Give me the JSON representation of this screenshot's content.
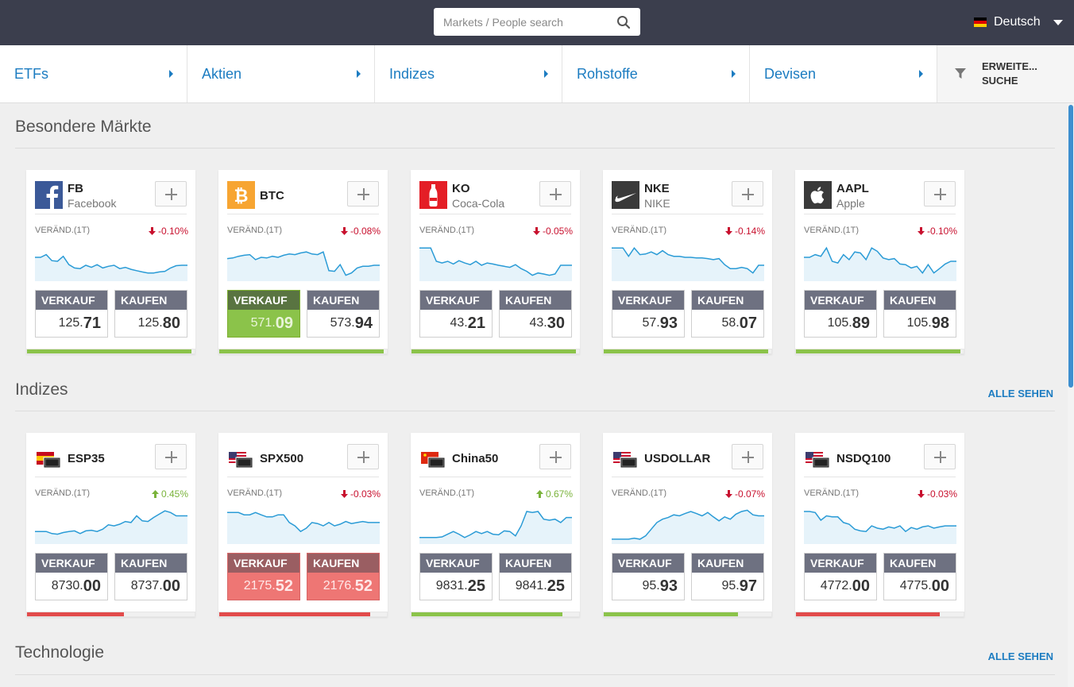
{
  "header": {
    "search_placeholder": "Markets / People search",
    "language": "Deutsch"
  },
  "nav": {
    "items": [
      {
        "label": "ETFs"
      },
      {
        "label": "Aktien"
      },
      {
        "label": "Indizes"
      },
      {
        "label": "Rohstoffe"
      },
      {
        "label": "Devisen"
      }
    ],
    "advanced_search": "ERWEITE... SUCHE"
  },
  "sections": [
    {
      "title": "Besondere Märkte",
      "see_all": "",
      "cards": [
        {
          "symbol": "FB",
          "name": "Facebook",
          "logo": "facebook-logo",
          "change_label": "VERÄND.(1T)",
          "change": "-0.10%",
          "direction": "down",
          "sell_label": "VERKAUF",
          "sell_int": "125.",
          "sell_dec": "71",
          "buy_label": "KAUFEN",
          "buy_int": "125.",
          "buy_dec": "80",
          "sentiment": 0.98,
          "sentiment_color": "green",
          "active": "none",
          "spark": [
            0.38,
            0.38,
            0.3,
            0.48,
            0.5,
            0.35,
            0.6,
            0.7,
            0.72,
            0.62,
            0.68,
            0.6,
            0.7,
            0.65,
            0.62,
            0.72,
            0.68,
            0.74,
            0.78,
            0.82,
            0.85,
            0.85,
            0.82,
            0.8,
            0.7,
            0.63,
            0.62,
            0.62
          ]
        },
        {
          "symbol": "BTC",
          "name": "",
          "logo": "bitcoin-logo",
          "change_label": "VERÄND.(1T)",
          "change": "-0.08%",
          "direction": "down",
          "sell_label": "VERKAUF",
          "sell_int": "571.",
          "sell_dec": "09",
          "buy_label": "KAUFEN",
          "buy_int": "573.",
          "buy_dec": "94",
          "sentiment": 0.98,
          "sentiment_color": "green",
          "active": "sell-green",
          "spark": [
            0.42,
            0.4,
            0.35,
            0.32,
            0.3,
            0.45,
            0.38,
            0.4,
            0.35,
            0.38,
            0.32,
            0.28,
            0.3,
            0.25,
            0.22,
            0.28,
            0.3,
            0.22,
            0.78,
            0.8,
            0.6,
            0.92,
            0.85,
            0.7,
            0.65,
            0.65,
            0.62,
            0.62
          ]
        },
        {
          "symbol": "KO",
          "name": "Coca-Cola",
          "logo": "coca-cola-logo",
          "change_label": "VERÄND.(1T)",
          "change": "-0.05%",
          "direction": "down",
          "sell_label": "VERKAUF",
          "sell_int": "43.",
          "sell_dec": "21",
          "buy_label": "KAUFEN",
          "buy_int": "43.",
          "buy_dec": "30",
          "sentiment": 0.98,
          "sentiment_color": "green",
          "active": "none",
          "spark": [
            0.1,
            0.1,
            0.1,
            0.5,
            0.55,
            0.5,
            0.58,
            0.48,
            0.55,
            0.6,
            0.5,
            0.62,
            0.55,
            0.58,
            0.62,
            0.65,
            0.68,
            0.6,
            0.72,
            0.8,
            0.92,
            0.85,
            0.88,
            0.92,
            0.88,
            0.62,
            0.62,
            0.62
          ]
        },
        {
          "symbol": "NKE",
          "name": "NIKE",
          "logo": "nike-logo",
          "change_label": "VERÄND.(1T)",
          "change": "-0.14%",
          "direction": "down",
          "sell_label": "VERKAUF",
          "sell_int": "57.",
          "sell_dec": "93",
          "buy_label": "KAUFEN",
          "buy_int": "58.",
          "buy_dec": "07",
          "sentiment": 0.98,
          "sentiment_color": "green",
          "active": "none",
          "spark": [
            0.1,
            0.1,
            0.1,
            0.35,
            0.1,
            0.3,
            0.28,
            0.22,
            0.3,
            0.18,
            0.3,
            0.35,
            0.35,
            0.38,
            0.38,
            0.4,
            0.4,
            0.42,
            0.45,
            0.42,
            0.6,
            0.72,
            0.72,
            0.68,
            0.72,
            0.85,
            0.62,
            0.62
          ]
        },
        {
          "symbol": "AAPL",
          "name": "Apple",
          "logo": "apple-logo",
          "change_label": "VERÄND.(1T)",
          "change": "-0.10%",
          "direction": "down",
          "sell_label": "VERKAUF",
          "sell_int": "105.",
          "sell_dec": "89",
          "buy_label": "KAUFEN",
          "buy_int": "105.",
          "buy_dec": "98",
          "sentiment": 0.98,
          "sentiment_color": "green",
          "active": "none",
          "spark": [
            0.38,
            0.38,
            0.3,
            0.35,
            0.1,
            0.5,
            0.55,
            0.3,
            0.45,
            0.22,
            0.25,
            0.45,
            0.1,
            0.2,
            0.4,
            0.45,
            0.42,
            0.58,
            0.6,
            0.7,
            0.65,
            0.85,
            0.6,
            0.85,
            0.72,
            0.58,
            0.5,
            0.5
          ]
        }
      ]
    },
    {
      "title": "Indizes",
      "see_all": "ALLE SEHEN",
      "cards": [
        {
          "symbol": "ESP35",
          "name": "",
          "logo": "spain-flag-icon",
          "change_label": "VERÄND.(1T)",
          "change": "0.45%",
          "direction": "up",
          "sell_label": "VERKAUF",
          "sell_int": "8730.",
          "sell_dec": "00",
          "buy_label": "KAUFEN",
          "buy_int": "8737.",
          "buy_dec": "00",
          "sentiment": 0.58,
          "sentiment_color": "red",
          "active": "none",
          "spark": [
            0.72,
            0.72,
            0.72,
            0.78,
            0.8,
            0.75,
            0.72,
            0.7,
            0.78,
            0.7,
            0.68,
            0.72,
            0.65,
            0.52,
            0.55,
            0.5,
            0.42,
            0.45,
            0.25,
            0.4,
            0.42,
            0.3,
            0.2,
            0.1,
            0.15,
            0.25,
            0.25,
            0.25
          ]
        },
        {
          "symbol": "SPX500",
          "name": "",
          "logo": "us-flag-icon",
          "change_label": "VERÄND.(1T)",
          "change": "-0.03%",
          "direction": "down",
          "sell_label": "VERKAUF",
          "sell_int": "2175.",
          "sell_dec": "52",
          "buy_label": "KAUFEN",
          "buy_int": "2176.",
          "buy_dec": "52",
          "sentiment": 0.9,
          "sentiment_color": "red",
          "active": "both-red",
          "spark": [
            0.15,
            0.15,
            0.15,
            0.22,
            0.22,
            0.15,
            0.22,
            0.28,
            0.28,
            0.22,
            0.22,
            0.45,
            0.55,
            0.72,
            0.62,
            0.45,
            0.48,
            0.55,
            0.45,
            0.55,
            0.5,
            0.42,
            0.48,
            0.45,
            0.42,
            0.45,
            0.45,
            0.45
          ]
        },
        {
          "symbol": "China50",
          "name": "",
          "logo": "china-flag-icon",
          "change_label": "VERÄND.(1T)",
          "change": "0.67%",
          "direction": "up",
          "sell_label": "VERKAUF",
          "sell_int": "9831.",
          "sell_dec": "25",
          "buy_label": "KAUFEN",
          "buy_int": "9841.",
          "buy_dec": "25",
          "sentiment": 0.9,
          "sentiment_color": "green",
          "active": "none",
          "spark": [
            0.9,
            0.9,
            0.9,
            0.9,
            0.88,
            0.8,
            0.72,
            0.8,
            0.9,
            0.82,
            0.72,
            0.78,
            0.72,
            0.8,
            0.82,
            0.7,
            0.72,
            0.85,
            0.55,
            0.12,
            0.15,
            0.12,
            0.35,
            0.38,
            0.35,
            0.45,
            0.3,
            0.3
          ]
        },
        {
          "symbol": "USDOLLAR",
          "name": "",
          "logo": "us-flag-icon",
          "change_label": "VERÄND.(1T)",
          "change": "-0.07%",
          "direction": "down",
          "sell_label": "VERKAUF",
          "sell_int": "95.",
          "sell_dec": "93",
          "buy_label": "KAUFEN",
          "buy_int": "95.",
          "buy_dec": "97",
          "sentiment": 0.8,
          "sentiment_color": "green",
          "active": "none",
          "spark": [
            0.95,
            0.95,
            0.95,
            0.95,
            0.92,
            0.95,
            0.85,
            0.65,
            0.45,
            0.35,
            0.3,
            0.22,
            0.25,
            0.18,
            0.12,
            0.18,
            0.25,
            0.15,
            0.28,
            0.4,
            0.28,
            0.35,
            0.2,
            0.12,
            0.08,
            0.22,
            0.25,
            0.25
          ]
        },
        {
          "symbol": "NSDQ100",
          "name": "",
          "logo": "us-flag-icon",
          "change_label": "VERÄND.(1T)",
          "change": "-0.03%",
          "direction": "down",
          "sell_label": "VERKAUF",
          "sell_int": "4772.",
          "sell_dec": "00",
          "buy_label": "KAUFEN",
          "buy_int": "4775.",
          "buy_dec": "00",
          "sentiment": 0.86,
          "sentiment_color": "red",
          "active": "none",
          "spark": [
            0.12,
            0.12,
            0.15,
            0.38,
            0.25,
            0.28,
            0.28,
            0.45,
            0.5,
            0.65,
            0.7,
            0.72,
            0.55,
            0.62,
            0.65,
            0.58,
            0.62,
            0.55,
            0.72,
            0.6,
            0.65,
            0.58,
            0.55,
            0.62,
            0.58,
            0.55,
            0.55,
            0.55
          ]
        }
      ]
    },
    {
      "title": "Technologie",
      "see_all": "ALLE SEHEN",
      "cards": []
    }
  ],
  "colors": {
    "accent": "#1c7cc1",
    "topbar": "#3b3e4d",
    "spark_line": "#2a9bd6",
    "spark_fill": "#e6f3fa",
    "up": "#7ab33b",
    "down": "#c8102e"
  }
}
